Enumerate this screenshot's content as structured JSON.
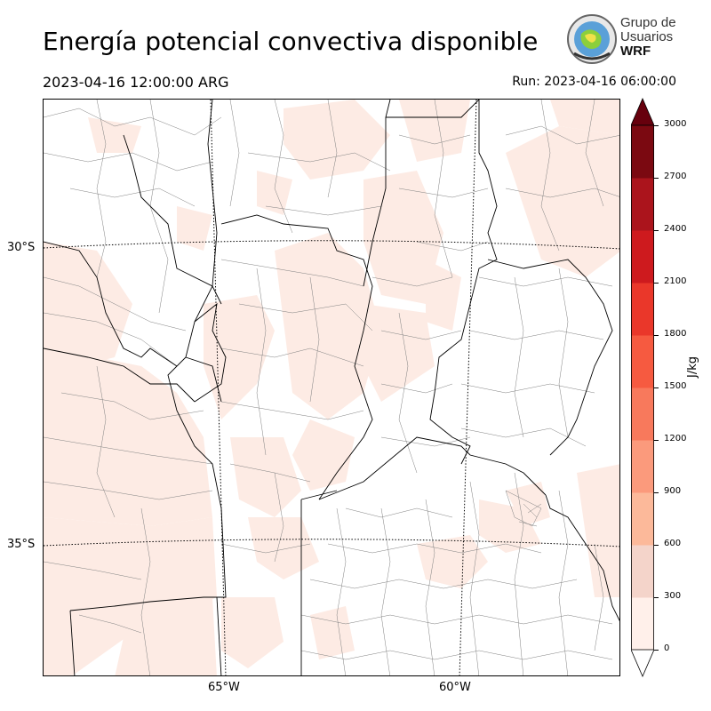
{
  "header": {
    "title": "Energía potencial convectiva disponible",
    "valid_time": "2023-04-16 12:00:00 ARG",
    "run_time": "Run: 2023-04-16 06:00:00"
  },
  "logo": {
    "line1": "Grupo de",
    "line2": "Usuarios",
    "line3": "WRF"
  },
  "map": {
    "lat_labels": [
      "30°S",
      "35°S"
    ],
    "lon_labels": [
      "65°W",
      "60°W"
    ],
    "fill_color": "#fdebe4",
    "boundary_color": "#000000",
    "department_color": "#808080"
  },
  "colorbar": {
    "unit": "J/kg",
    "ticks": [
      "0",
      "300",
      "600",
      "900",
      "1200",
      "1500",
      "1800",
      "2100",
      "2400",
      "2700",
      "3000"
    ],
    "colors": [
      "#fff0ea",
      "#f4d4ca",
      "#fcb99a",
      "#fb9a7c",
      "#f8795c",
      "#f65a40",
      "#ea372a",
      "#ce1a1e",
      "#ab141c",
      "#7b0911"
    ],
    "under_color": "#ffffff",
    "over_color": "#67000d"
  }
}
